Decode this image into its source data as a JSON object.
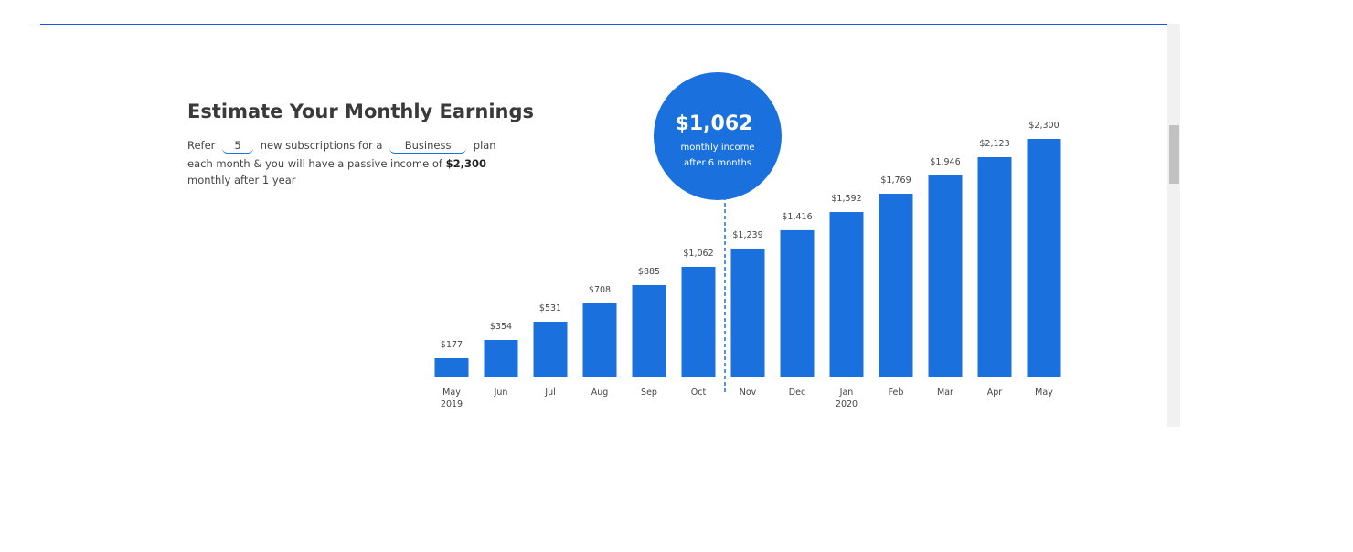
{
  "header": {
    "title": "Estimate Your Monthly Earnings"
  },
  "form": {
    "text_1": "Refer",
    "subscriptions": "5",
    "text_2": "new subscriptions for a",
    "plan": "Business",
    "text_3": "plan",
    "text_4": "each month & you will have a passive income of",
    "amount": "$2,300",
    "text_5": "monthly after 1 year"
  },
  "chart_data": {
    "type": "bar",
    "categories": [
      "May 2019",
      "Jun",
      "Jul",
      "Aug",
      "Sep",
      "Oct",
      "Nov",
      "Dec",
      "Jan 2020",
      "Feb",
      "Mar",
      "Apr",
      "May"
    ],
    "values": [
      177,
      354,
      531,
      708,
      885,
      1062,
      1239,
      1416,
      1592,
      1769,
      1946,
      2123,
      2300
    ],
    "value_labels": [
      "$177",
      "$354",
      "$531",
      "$708",
      "$885",
      "$1,062",
      "$1,239",
      "$1,416",
      "$1,592",
      "$1,769",
      "$1,946",
      "$2,123",
      "$2,300"
    ],
    "color": "#1a70dc",
    "callout": {
      "index": 5,
      "value_label": "$1,062",
      "lines": [
        "monthly income",
        "after 6 months"
      ]
    }
  }
}
